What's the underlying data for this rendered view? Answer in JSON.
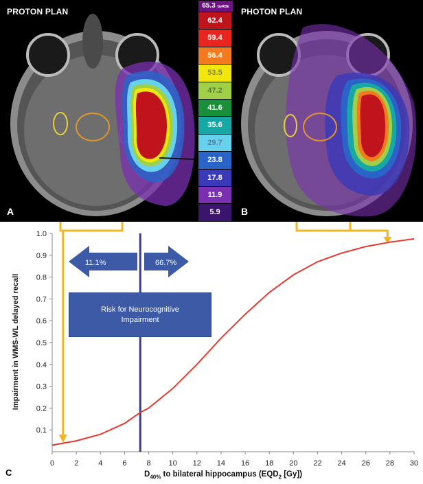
{
  "panel_a": {
    "title": "PROTON PLAN",
    "letter": "A"
  },
  "panel_b": {
    "title": "PHOTON PLAN",
    "letter": "B"
  },
  "colorbar": {
    "max_value": "65.3",
    "unit": "GyRBE",
    "levels": [
      {
        "label": "62.4",
        "color": "#c0141d",
        "text_color": "#ffffff"
      },
      {
        "label": "59.4",
        "color": "#e8261f",
        "text_color": "#ffffff"
      },
      {
        "label": "56.4",
        "color": "#f47a1f",
        "text_color": "#ffffff"
      },
      {
        "label": "53.5",
        "color": "#f2e60f",
        "text_color": "#8a8a40"
      },
      {
        "label": "47.2",
        "color": "#9fd047",
        "text_color": "#5a7a3a"
      },
      {
        "label": "41.6",
        "color": "#1a8f3a",
        "text_color": "#ffffff"
      },
      {
        "label": "35.6",
        "color": "#17a8a6",
        "text_color": "#ffffff"
      },
      {
        "label": "29.7",
        "color": "#66d2ee",
        "text_color": "#5a7fa0"
      },
      {
        "label": "23.8",
        "color": "#2a64c8",
        "text_color": "#ffffff"
      },
      {
        "label": "17.8",
        "color": "#3a3ab8",
        "text_color": "#ffffff"
      },
      {
        "label": "11.9",
        "color": "#7a30b0",
        "text_color": "#ffffff"
      },
      {
        "label": "5.9",
        "color": "#3b1470",
        "text_color": "#ffffff"
      }
    ]
  },
  "annotations": {
    "left_arrow": "11.1%",
    "right_arrow": "66.7%",
    "risk_box": "Risk for Neurocognitive Impairment"
  },
  "panel_c_letter": "C",
  "chart_data": {
    "type": "line",
    "xlabel_main": "D",
    "xlabel_sub": "40%",
    "xlabel_rest": " to bilateral hippocampus (EQD",
    "xlabel_sub2": "2",
    "xlabel_end": " [Gy])",
    "ylabel": "Impairment in WMS-WL delayed recall",
    "xlim": [
      0,
      30
    ],
    "ylim": [
      0,
      1.0
    ],
    "x_ticks": [
      "0",
      "2",
      "4",
      "6",
      "8",
      "10",
      "12",
      "14",
      "16",
      "18",
      "20",
      "22",
      "24",
      "26",
      "28",
      "30"
    ],
    "y_ticks": [
      "0.1",
      "0.2",
      "0.3",
      "0.4",
      "0.5",
      "0.6",
      "0.7",
      "0.8",
      "0.9",
      "1.0"
    ],
    "grid": false,
    "series": [
      {
        "color": "#e8392f",
        "x": [
          0,
          2,
          4,
          6,
          7.3,
          8,
          10,
          12,
          14,
          16,
          18,
          20,
          22,
          24,
          26,
          28,
          30
        ],
        "y": [
          0.03,
          0.05,
          0.08,
          0.13,
          0.18,
          0.2,
          0.29,
          0.4,
          0.52,
          0.63,
          0.73,
          0.81,
          0.87,
          0.91,
          0.94,
          0.96,
          0.975
        ]
      }
    ],
    "threshold_x": 7.3,
    "proton_dose_x": 0.9,
    "photon_dose_x": 27.8
  }
}
